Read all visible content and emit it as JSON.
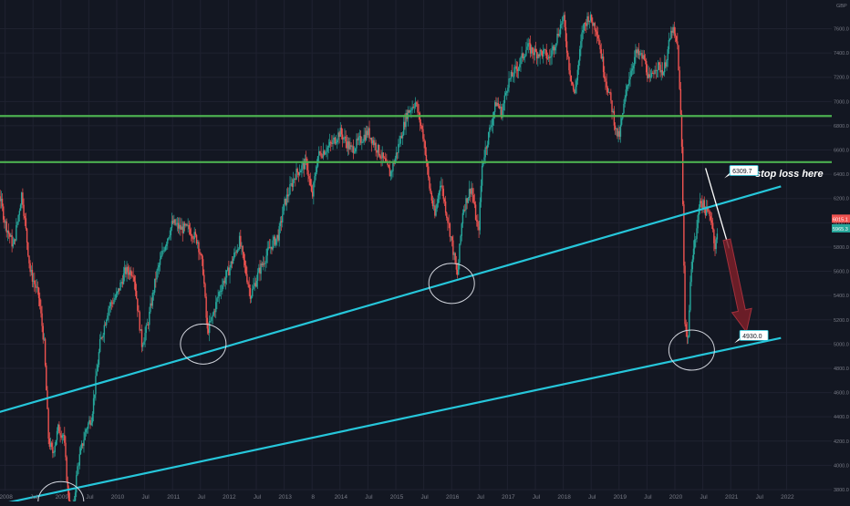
{
  "chart_data": {
    "type": "candlestick",
    "currency": "GBP",
    "ylim": [
      3600,
      7900
    ],
    "y_ticks": [
      3800,
      4000,
      4200,
      4400,
      4600,
      4800,
      5000,
      5200,
      5400,
      5600,
      5800,
      6000,
      6200,
      6400,
      6600,
      6800,
      7000,
      7200,
      7400,
      7600
    ],
    "x_ticks": [
      {
        "label": "Jul",
        "t": 2007.5
      },
      {
        "label": "2008",
        "t": 2008.0
      },
      {
        "label": "Jul",
        "t": 2008.5
      },
      {
        "label": "2009",
        "t": 2009.0
      },
      {
        "label": "Jul",
        "t": 2009.5
      },
      {
        "label": "2010",
        "t": 2010.0
      },
      {
        "label": "Jul",
        "t": 2010.5
      },
      {
        "label": "2011",
        "t": 2011.0
      },
      {
        "label": "Jul",
        "t": 2011.5
      },
      {
        "label": "2012",
        "t": 2012.0
      },
      {
        "label": "Jul",
        "t": 2012.5
      },
      {
        "label": "2013",
        "t": 2013.0
      },
      {
        "label": "8",
        "t": 2013.5
      },
      {
        "label": "2014",
        "t": 2014.0
      },
      {
        "label": "Jul",
        "t": 2014.5
      },
      {
        "label": "2015",
        "t": 2015.0
      },
      {
        "label": "Jul",
        "t": 2015.5
      },
      {
        "label": "2016",
        "t": 2016.0
      },
      {
        "label": "Jul",
        "t": 2016.5
      },
      {
        "label": "2017",
        "t": 2017.0
      },
      {
        "label": "Jul",
        "t": 2017.5
      },
      {
        "label": "2018",
        "t": 2018.0
      },
      {
        "label": "Jul",
        "t": 2018.5
      },
      {
        "label": "2019",
        "t": 2019.0
      },
      {
        "label": "Jul",
        "t": 2019.5
      },
      {
        "label": "2020",
        "t": 2020.0
      },
      {
        "label": "Jul",
        "t": 2020.5
      },
      {
        "label": "2021",
        "t": 2021.0
      },
      {
        "label": "Jul",
        "t": 2021.5
      },
      {
        "label": "2022",
        "t": 2022.0
      }
    ],
    "price_path": [
      [
        2007.45,
        6650
      ],
      [
        2007.6,
        6600
      ],
      [
        2007.8,
        6450
      ],
      [
        2008.0,
        6000
      ],
      [
        2008.15,
        5800
      ],
      [
        2008.3,
        6250
      ],
      [
        2008.45,
        5600
      ],
      [
        2008.6,
        5400
      ],
      [
        2008.7,
        5000
      ],
      [
        2008.78,
        4200
      ],
      [
        2008.85,
        4100
      ],
      [
        2008.95,
        4300
      ],
      [
        2009.05,
        4250
      ],
      [
        2009.12,
        3800
      ],
      [
        2009.2,
        3550
      ],
      [
        2009.3,
        4000
      ],
      [
        2009.45,
        4300
      ],
      [
        2009.55,
        4400
      ],
      [
        2009.7,
        5000
      ],
      [
        2009.85,
        5300
      ],
      [
        2010.0,
        5400
      ],
      [
        2010.15,
        5600
      ],
      [
        2010.3,
        5600
      ],
      [
        2010.4,
        5200
      ],
      [
        2010.45,
        5000
      ],
      [
        2010.55,
        5150
      ],
      [
        2010.7,
        5550
      ],
      [
        2010.85,
        5800
      ],
      [
        2011.0,
        6000
      ],
      [
        2011.15,
        5950
      ],
      [
        2011.3,
        5950
      ],
      [
        2011.45,
        5850
      ],
      [
        2011.55,
        5600
      ],
      [
        2011.62,
        5100
      ],
      [
        2011.7,
        5200
      ],
      [
        2011.85,
        5450
      ],
      [
        2012.0,
        5600
      ],
      [
        2012.2,
        5850
      ],
      [
        2012.4,
        5400
      ],
      [
        2012.55,
        5600
      ],
      [
        2012.75,
        5800
      ],
      [
        2012.9,
        5900
      ],
      [
        2013.0,
        6150
      ],
      [
        2013.2,
        6400
      ],
      [
        2013.4,
        6500
      ],
      [
        2013.5,
        6200
      ],
      [
        2013.6,
        6550
      ],
      [
        2013.85,
        6650
      ],
      [
        2014.0,
        6750
      ],
      [
        2014.2,
        6600
      ],
      [
        2014.5,
        6750
      ],
      [
        2014.8,
        6500
      ],
      [
        2014.9,
        6400
      ],
      [
        2015.0,
        6550
      ],
      [
        2015.2,
        6900
      ],
      [
        2015.35,
        7000
      ],
      [
        2015.5,
        6700
      ],
      [
        2015.6,
        6300
      ],
      [
        2015.7,
        6050
      ],
      [
        2015.8,
        6350
      ],
      [
        2015.9,
        6100
      ],
      [
        2016.0,
        5850
      ],
      [
        2016.1,
        5550
      ],
      [
        2016.2,
        6100
      ],
      [
        2016.35,
        6300
      ],
      [
        2016.48,
        5900
      ],
      [
        2016.55,
        6500
      ],
      [
        2016.65,
        6700
      ],
      [
        2016.8,
        7000
      ],
      [
        2016.9,
        6900
      ],
      [
        2017.0,
        7150
      ],
      [
        2017.2,
        7300
      ],
      [
        2017.35,
        7450
      ],
      [
        2017.5,
        7400
      ],
      [
        2017.65,
        7400
      ],
      [
        2017.75,
        7350
      ],
      [
        2017.9,
        7550
      ],
      [
        2018.0,
        7700
      ],
      [
        2018.1,
        7300
      ],
      [
        2018.2,
        7050
      ],
      [
        2018.35,
        7600
      ],
      [
        2018.45,
        7700
      ],
      [
        2018.6,
        7600
      ],
      [
        2018.75,
        7200
      ],
      [
        2018.85,
        7000
      ],
      [
        2018.95,
        6750
      ],
      [
        2019.0,
        6700
      ],
      [
        2019.15,
        7150
      ],
      [
        2019.3,
        7400
      ],
      [
        2019.45,
        7350
      ],
      [
        2019.55,
        7150
      ],
      [
        2019.65,
        7300
      ],
      [
        2019.8,
        7250
      ],
      [
        2019.95,
        7600
      ],
      [
        2020.05,
        7450
      ],
      [
        2020.12,
        6700
      ],
      [
        2020.18,
        5200
      ],
      [
        2020.23,
        5000
      ],
      [
        2020.3,
        5700
      ],
      [
        2020.38,
        5900
      ],
      [
        2020.45,
        6200
      ],
      [
        2020.55,
        6100
      ],
      [
        2020.65,
        6050
      ],
      [
        2020.72,
        5800
      ],
      [
        2020.76,
        5900
      ]
    ],
    "lines": [
      {
        "name": "resistance-upper",
        "kind": "horizontal",
        "y": 6880,
        "color": "#4caf50"
      },
      {
        "name": "resistance-lower",
        "kind": "horizontal",
        "y": 6500,
        "color": "#4caf50"
      },
      {
        "name": "trend-upper",
        "kind": "trend",
        "p1": [
          2007.0,
          4320
        ],
        "p2": [
          2021.9,
          6300
        ],
        "color": "#26c6da"
      },
      {
        "name": "trend-lower",
        "kind": "trend",
        "p1": [
          2007.1,
          3600
        ],
        "p2": [
          2021.9,
          5050
        ],
        "color": "#26c6da"
      },
      {
        "name": "down-trend",
        "kind": "trend",
        "p1": [
          2020.55,
          6450
        ],
        "p2": [
          2020.97,
          5790
        ],
        "color": "#ffffff"
      }
    ],
    "circles": [
      {
        "t": 2009.0,
        "y": 3700
      },
      {
        "t": 2011.55,
        "y": 5000
      },
      {
        "t": 2016.0,
        "y": 5500
      },
      {
        "t": 2020.3,
        "y": 4950
      }
    ],
    "arrow": {
      "from": [
        2020.93,
        5860
      ],
      "to": [
        2021.28,
        5100
      ]
    },
    "annotations": [
      {
        "label": "6309.7",
        "t": 2020.95,
        "y": 6420
      },
      {
        "label": "stop loss here"
      },
      {
        "label": "4930.0",
        "t": 2021.13,
        "y": 5060
      }
    ],
    "price_tags": [
      {
        "label": "6015.1",
        "y": 6030,
        "color": "#ef5350"
      },
      {
        "label": "5965.3",
        "y": 5950,
        "color": "#26a69a"
      }
    ]
  }
}
